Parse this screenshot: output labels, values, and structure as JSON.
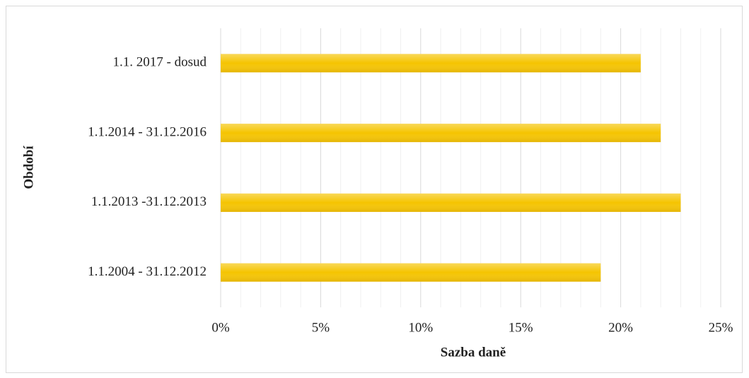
{
  "chart_data": {
    "type": "hbar",
    "x_label": "Sazba daně",
    "y_label": "Období",
    "categories": [
      "1.1. 2017 - dosud",
      "1.1.2014 - 31.12.2016",
      "1.1.2013 -31.12.2013",
      "1.1.2004 - 31.12.2012"
    ],
    "values": [
      21,
      22,
      23,
      19
    ],
    "color": "#f5c400",
    "xlim": [
      0,
      25
    ],
    "xticks": [
      {
        "value": 0,
        "label": "0%"
      },
      {
        "value": 5,
        "label": "5%"
      },
      {
        "value": 10,
        "label": "10%"
      },
      {
        "value": 15,
        "label": "15%"
      },
      {
        "value": 20,
        "label": "20%"
      },
      {
        "value": 25,
        "label": "25%"
      }
    ],
    "grid": true,
    "minor_grid": true
  }
}
